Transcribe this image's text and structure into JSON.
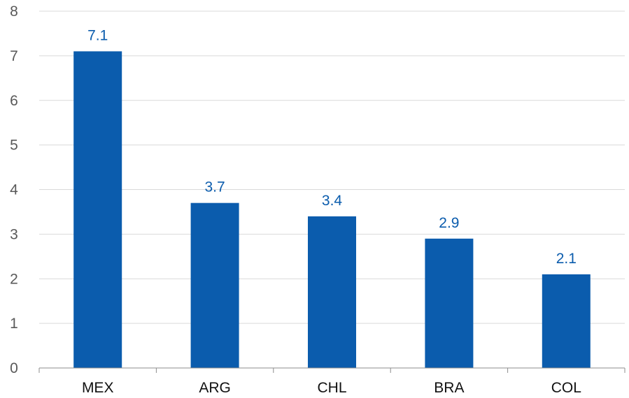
{
  "chart_data": {
    "type": "bar",
    "categories": [
      "MEX",
      "ARG",
      "CHL",
      "BRA",
      "COL"
    ],
    "values": [
      7.1,
      3.7,
      3.4,
      2.9,
      2.1
    ],
    "data_labels": [
      "7.1",
      "3.7",
      "3.4",
      "2.9",
      "2.1"
    ],
    "ylim": [
      0,
      8
    ],
    "yticks": [
      "0",
      "1",
      "2",
      "3",
      "4",
      "5",
      "6",
      "7",
      "8"
    ],
    "grid": true,
    "legend": "none",
    "bar_color": "#0b5cad",
    "label_color": "#0b5cad"
  }
}
